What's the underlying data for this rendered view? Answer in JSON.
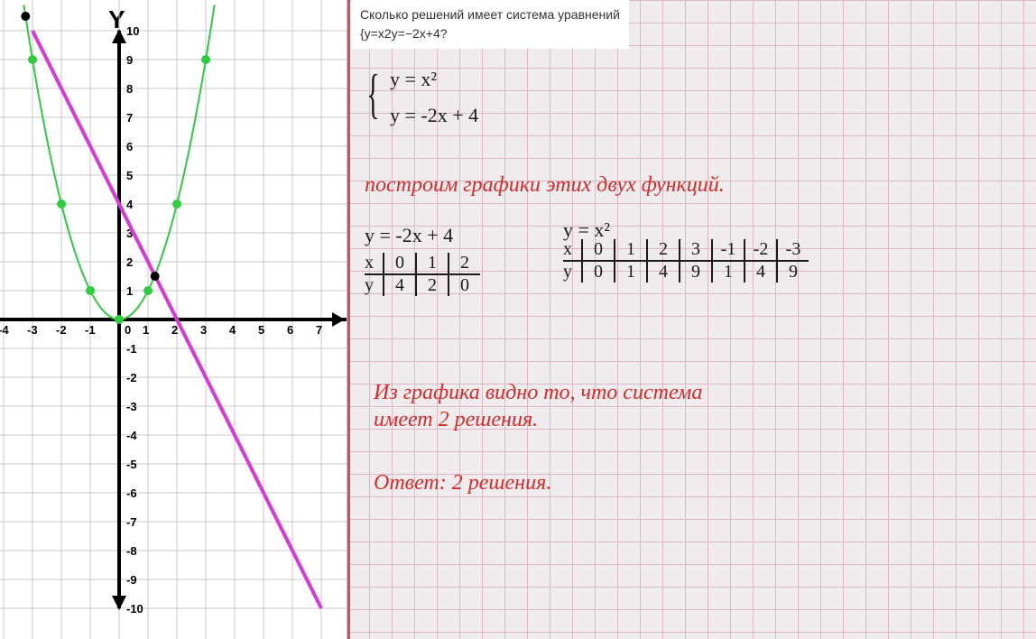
{
  "question": {
    "line1": "Сколько решений имеет система уравнений",
    "line2": "{y=x2y=−2x+4?"
  },
  "system": {
    "eq1": "y = x²",
    "eq2": "y = -2x + 4"
  },
  "red_text": {
    "build": "построим графики этих двух функций.",
    "conclusion1": "Из графика видно то, что система",
    "conclusion2": "имеет 2 решения.",
    "answer": "Ответ: 2 решения."
  },
  "line_table": {
    "func": "y = -2x + 4",
    "x_label": "x",
    "y_label": "y",
    "x": [
      "0",
      "1",
      "2"
    ],
    "y": [
      "4",
      "2",
      "0"
    ]
  },
  "parabola_table": {
    "func": "y = x²",
    "x_label": "x",
    "y_label": "y",
    "x": [
      "0",
      "1",
      "2",
      "3",
      "-1",
      "-2",
      "-3"
    ],
    "y": [
      "0",
      "1",
      "4",
      "9",
      "1",
      "4",
      "9"
    ]
  },
  "graph": {
    "y_axis_title": "Y",
    "x_range": [
      -4,
      7
    ],
    "y_range": [
      -10,
      10
    ],
    "x_ticks": [
      -4,
      -3,
      -2,
      -1,
      0,
      1,
      2,
      3,
      4,
      5,
      6,
      7
    ],
    "y_ticks": [
      -10,
      -9,
      -8,
      -7,
      -6,
      -5,
      -4,
      -3,
      -2,
      -1,
      0,
      1,
      2,
      3,
      4,
      5,
      6,
      7,
      8,
      9,
      10
    ],
    "grid_color": "#c8c8c8",
    "axis_color": "#000000",
    "parabola": {
      "color": "#2ecc40",
      "points": [
        [
          -3,
          9
        ],
        [
          -2,
          4
        ],
        [
          -1,
          1
        ],
        [
          0,
          0
        ],
        [
          1,
          1
        ],
        [
          2,
          4
        ],
        [
          3,
          9
        ]
      ],
      "marker_size": 5
    },
    "line": {
      "color": "#d63ad6",
      "points": [
        [
          -3,
          10
        ],
        [
          7,
          -10
        ]
      ],
      "width": 4
    },
    "intersections": {
      "color": "#000000",
      "points": [
        [
          -3.24,
          10.5
        ],
        [
          1.24,
          1.5
        ]
      ],
      "marker_size": 5
    }
  }
}
